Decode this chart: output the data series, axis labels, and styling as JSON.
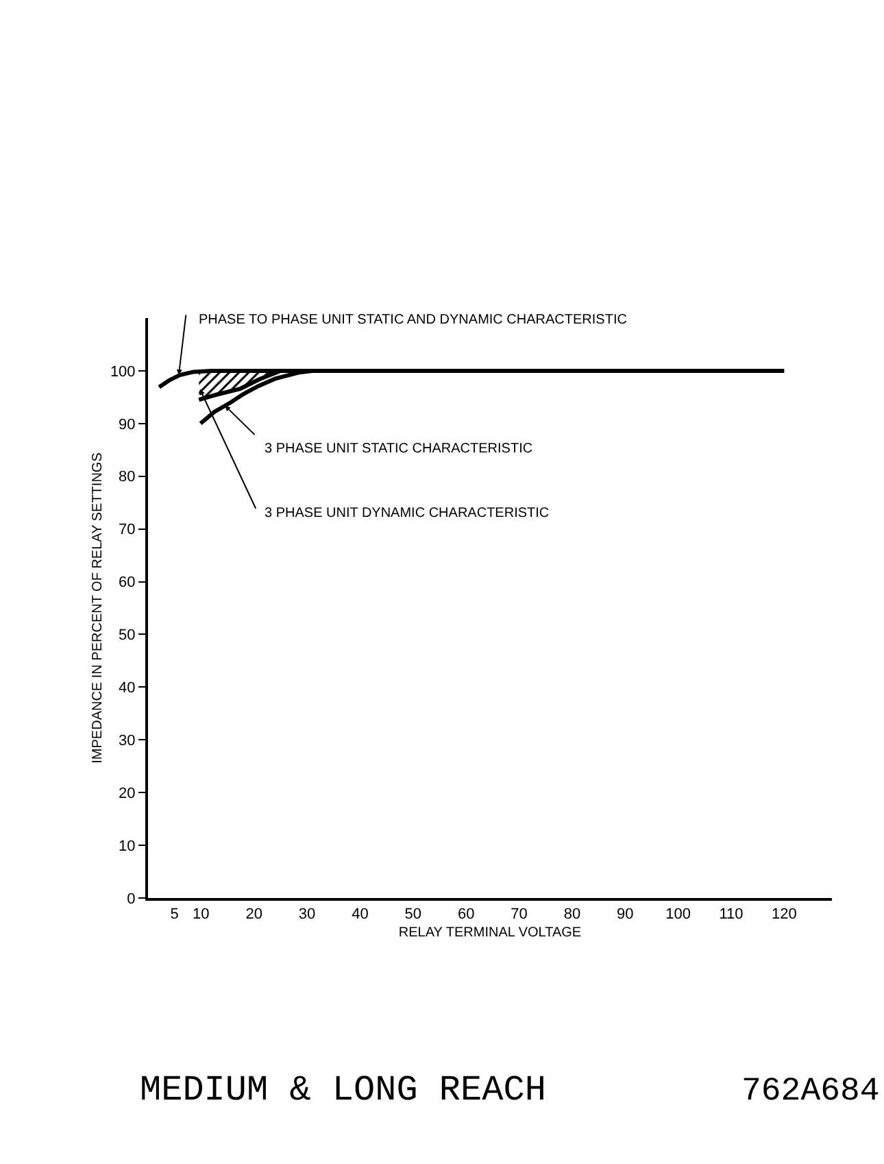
{
  "chart_data": {
    "type": "line",
    "xlabel": "RELAY TERMINAL VOLTAGE",
    "ylabel": "IMPEDANCE IN PERCENT OF RELAY SETTINGS",
    "xlim": [
      0,
      129
    ],
    "xticks": [
      5,
      10,
      20,
      30,
      40,
      50,
      60,
      70,
      80,
      90,
      100,
      110,
      120
    ],
    "ylim": [
      0,
      110
    ],
    "yticks": [
      0,
      10,
      20,
      30,
      40,
      50,
      60,
      70,
      80,
      90,
      100
    ],
    "grid": false,
    "legend": false,
    "marker": "none",
    "line_style": "solid",
    "series": [
      {
        "name": "PHASE TO PHASE UNIT STATIC AND DYNAMIC CHARACTERISTIC",
        "color": "#000000",
        "x": [
          2.1,
          4,
          6,
          8.6,
          12,
          20,
          30,
          60,
          90,
          120
        ],
        "values": [
          96.9,
          98.2,
          99.2,
          99.8,
          100,
          100,
          100,
          100,
          100,
          100
        ]
      },
      {
        "name": "3 PHASE UNIT STATIC CHARACTERISTIC",
        "color": "#000000",
        "x": [
          9.9,
          12.5,
          15.6,
          18,
          20.8,
          24,
          28.6,
          31
        ],
        "values": [
          90,
          92.2,
          94,
          95.6,
          97.1,
          98.5,
          99.7,
          100
        ]
      },
      {
        "name": "3 PHASE UNIT DYNAMIC CHARACTERISTIC",
        "color": "#000000",
        "x": [
          9.6,
          13,
          17.4,
          21,
          25
        ],
        "values": [
          94.5,
          95.5,
          96.6,
          98.4,
          100
        ],
        "lower": [
          94.5,
          95.5,
          96.6,
          98.4,
          100
        ],
        "upper": [
          100,
          100,
          100,
          100,
          100
        ]
      }
    ],
    "annotations": [
      "MEDIUM & LONG REACH",
      "762A684"
    ]
  }
}
